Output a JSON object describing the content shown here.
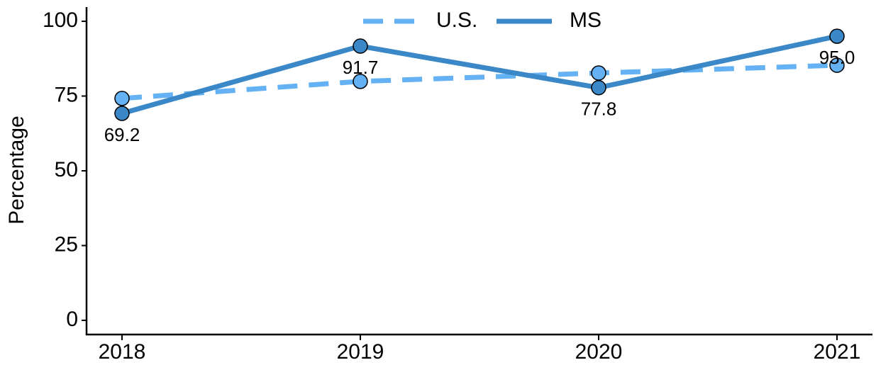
{
  "chart_data": {
    "type": "line",
    "ylabel": "Percentage",
    "categories": [
      "2018",
      "2019",
      "2020",
      "2021"
    ],
    "series": [
      {
        "name": "U.S.",
        "color": "#64b1f4",
        "dash": true,
        "values": [
          74.2,
          79.9,
          82.7,
          85.3
        ]
      },
      {
        "name": "MS",
        "color": "#3b88c8",
        "dash": false,
        "values": [
          69.2,
          91.7,
          77.8,
          95.0
        ],
        "value_labels": [
          "69.2",
          "91.7",
          "77.8",
          "95.0"
        ]
      }
    ],
    "ylim": [
      -4.75,
      104.75
    ],
    "yticks": [
      0,
      25,
      50,
      75,
      100
    ],
    "grid": false,
    "legend": "top"
  }
}
